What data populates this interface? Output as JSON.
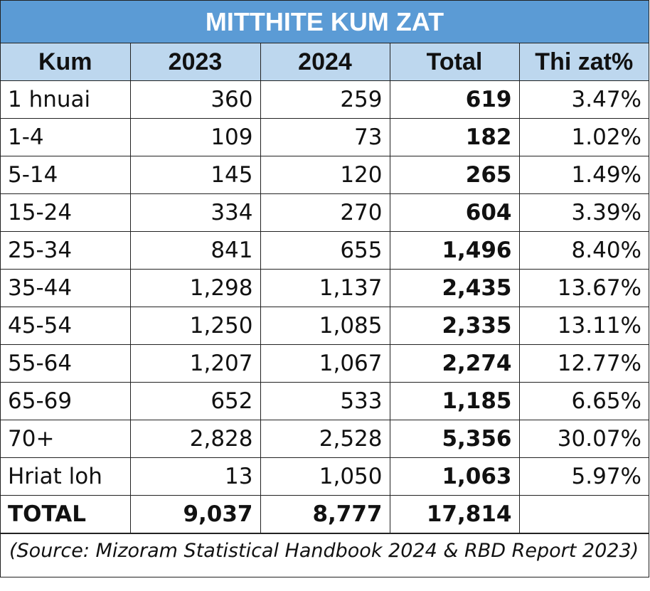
{
  "title": "MITTHITE KUM ZAT",
  "headers": [
    "Kum",
    "2023",
    "2024",
    "Total",
    "Thi zat%"
  ],
  "rows": [
    [
      "1 hnuai",
      "360",
      "259",
      "619",
      "3.47%"
    ],
    [
      "1-4",
      "109",
      "73",
      "182",
      "1.02%"
    ],
    [
      "5-14",
      "145",
      "120",
      "265",
      "1.49%"
    ],
    [
      "15-24",
      "334",
      "270",
      "604",
      "3.39%"
    ],
    [
      "25-34",
      "841",
      "655",
      "1,496",
      "8.40%"
    ],
    [
      "35-44",
      "1,298",
      "1,137",
      "2,435",
      "13.67%"
    ],
    [
      "45-54",
      "1,250",
      "1,085",
      "2,335",
      "13.11%"
    ],
    [
      "55-64",
      "1,207",
      "1,067",
      "2,274",
      "12.77%"
    ],
    [
      "65-69",
      "652",
      "533",
      "1,185",
      "6.65%"
    ],
    [
      "70+",
      "2,828",
      "2,528",
      "5,356",
      "30.07%"
    ],
    [
      "Hriat loh",
      "13",
      "1,050",
      "1,063",
      "5.97%"
    ]
  ],
  "total_row": [
    "TOTAL",
    "9,037",
    "8,777",
    "17,814",
    ""
  ],
  "source": "(Source: Mizoram Statistical Handbook 2024 & RBD Report 2023)",
  "colors": {
    "title_bg": "#5b9bd5",
    "header_bg": "#bdd7ee"
  }
}
